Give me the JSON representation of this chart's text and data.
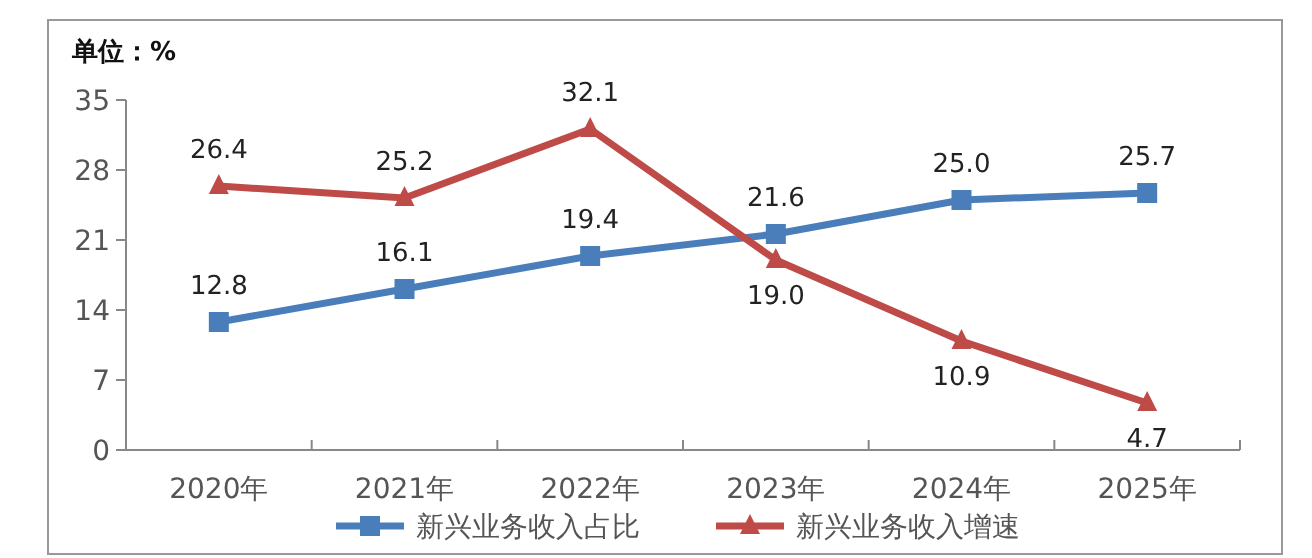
{
  "chart_data": {
    "type": "line",
    "ylabel": "单位：%",
    "categories": [
      "2020年",
      "2021年",
      "2022年",
      "2023年",
      "2024年",
      "2025年"
    ],
    "series": [
      {
        "name": "新兴业务收入占比",
        "color": "#4a7ebb",
        "marker": "square",
        "values": [
          12.8,
          16.1,
          19.4,
          21.6,
          25.0,
          25.7
        ],
        "value_labels": [
          "12.8",
          "16.1",
          "19.4",
          "21.6",
          "25.0",
          "25.7"
        ]
      },
      {
        "name": "新兴业务收入增速",
        "color": "#be4b48",
        "marker": "triangle",
        "values": [
          26.4,
          25.2,
          32.1,
          19.0,
          10.9,
          4.7
        ],
        "value_labels": [
          "26.4",
          "25.2",
          "32.1",
          "19.0",
          "10.9",
          "4.7"
        ]
      }
    ],
    "ylim": [
      0,
      35
    ],
    "yticks": [
      0,
      7,
      14,
      21,
      28,
      35
    ],
    "legend": "bottom",
    "grid": false,
    "line_style": "solid"
  }
}
